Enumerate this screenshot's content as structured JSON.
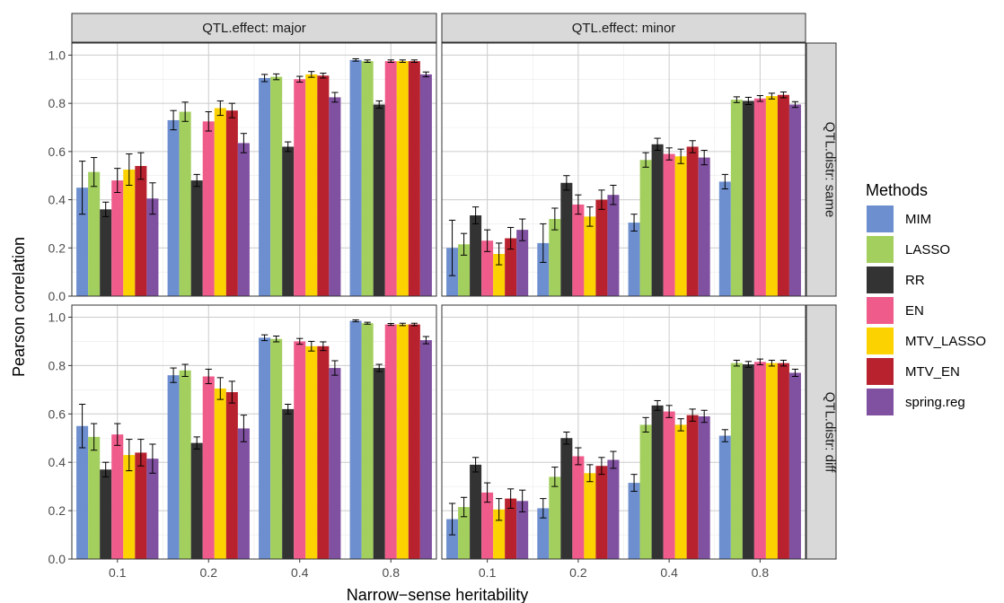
{
  "chart_data": {
    "type": "bar",
    "title": "",
    "xlabel": "Narrow−sense heritability",
    "ylabel": "Pearson correlation",
    "ylim": [
      0,
      1.05
    ],
    "yticks": [
      "0.0",
      "0.2",
      "0.4",
      "0.6",
      "0.8",
      "1.0"
    ],
    "categories": [
      "0.1",
      "0.2",
      "0.4",
      "0.8"
    ],
    "col_facet_prefix": "QTL.effect: ",
    "row_facet_prefix": "QTL.distr: ",
    "col_facets": [
      "major",
      "minor"
    ],
    "row_facets": [
      "same",
      "diff"
    ],
    "legend": {
      "title": "Methods",
      "position": "right",
      "items": [
        {
          "name": "MIM",
          "color": "#6d8fcf"
        },
        {
          "name": "LASSO",
          "color": "#a3cf5e"
        },
        {
          "name": "RR",
          "color": "#333333"
        },
        {
          "name": "EN",
          "color": "#ef5b8a"
        },
        {
          "name": "MTV_LASSO",
          "color": "#fcd200"
        },
        {
          "name": "MTV_EN",
          "color": "#b8222e"
        },
        {
          "name": "spring.reg",
          "color": "#8051a1"
        }
      ]
    },
    "panels": [
      {
        "col": "major",
        "row": "same",
        "series": [
          {
            "name": "MIM",
            "values": [
              0.45,
              0.73,
              0.905,
              0.98
            ],
            "errors": [
              0.11,
              0.04,
              0.015,
              0.005
            ]
          },
          {
            "name": "LASSO",
            "values": [
              0.515,
              0.765,
              0.91,
              0.975
            ],
            "errors": [
              0.06,
              0.04,
              0.012,
              0.005
            ]
          },
          {
            "name": "RR",
            "values": [
              0.36,
              0.48,
              0.62,
              0.795
            ],
            "errors": [
              0.03,
              0.025,
              0.02,
              0.015
            ]
          },
          {
            "name": "EN",
            "values": [
              0.48,
              0.725,
              0.9,
              0.975
            ],
            "errors": [
              0.05,
              0.04,
              0.012,
              0.005
            ]
          },
          {
            "name": "MTV_LASSO",
            "values": [
              0.525,
              0.78,
              0.92,
              0.975
            ],
            "errors": [
              0.065,
              0.03,
              0.012,
              0.005
            ]
          },
          {
            "name": "MTV_EN",
            "values": [
              0.54,
              0.77,
              0.915,
              0.975
            ],
            "errors": [
              0.055,
              0.03,
              0.01,
              0.005
            ]
          },
          {
            "name": "spring.reg",
            "values": [
              0.405,
              0.635,
              0.825,
              0.92
            ],
            "errors": [
              0.065,
              0.04,
              0.02,
              0.01
            ]
          }
        ]
      },
      {
        "col": "minor",
        "row": "same",
        "series": [
          {
            "name": "MIM",
            "values": [
              0.2,
              0.22,
              0.305,
              0.475
            ],
            "errors": [
              0.115,
              0.08,
              0.035,
              0.03
            ]
          },
          {
            "name": "LASSO",
            "values": [
              0.215,
              0.32,
              0.565,
              0.815
            ],
            "errors": [
              0.045,
              0.045,
              0.03,
              0.012
            ]
          },
          {
            "name": "RR",
            "values": [
              0.335,
              0.47,
              0.63,
              0.81
            ],
            "errors": [
              0.035,
              0.03,
              0.025,
              0.015
            ]
          },
          {
            "name": "EN",
            "values": [
              0.23,
              0.38,
              0.59,
              0.82
            ],
            "errors": [
              0.045,
              0.04,
              0.025,
              0.012
            ]
          },
          {
            "name": "MTV_LASSO",
            "values": [
              0.175,
              0.33,
              0.58,
              0.83
            ],
            "errors": [
              0.045,
              0.04,
              0.03,
              0.012
            ]
          },
          {
            "name": "MTV_EN",
            "values": [
              0.24,
              0.4,
              0.62,
              0.835
            ],
            "errors": [
              0.045,
              0.04,
              0.025,
              0.012
            ]
          },
          {
            "name": "spring.reg",
            "values": [
              0.275,
              0.42,
              0.575,
              0.795
            ],
            "errors": [
              0.045,
              0.04,
              0.03,
              0.012
            ]
          }
        ]
      },
      {
        "col": "major",
        "row": "diff",
        "series": [
          {
            "name": "MIM",
            "values": [
              0.55,
              0.76,
              0.915,
              0.985
            ],
            "errors": [
              0.09,
              0.03,
              0.012,
              0.004
            ]
          },
          {
            "name": "LASSO",
            "values": [
              0.505,
              0.78,
              0.91,
              0.975
            ],
            "errors": [
              0.055,
              0.025,
              0.012,
              0.004
            ]
          },
          {
            "name": "RR",
            "values": [
              0.37,
              0.48,
              0.62,
              0.79
            ],
            "errors": [
              0.03,
              0.025,
              0.02,
              0.015
            ]
          },
          {
            "name": "EN",
            "values": [
              0.515,
              0.755,
              0.9,
              0.97
            ],
            "errors": [
              0.045,
              0.03,
              0.012,
              0.004
            ]
          },
          {
            "name": "MTV_LASSO",
            "values": [
              0.43,
              0.705,
              0.88,
              0.97
            ],
            "errors": [
              0.065,
              0.045,
              0.02,
              0.005
            ]
          },
          {
            "name": "MTV_EN",
            "values": [
              0.44,
              0.69,
              0.88,
              0.97
            ],
            "errors": [
              0.055,
              0.045,
              0.018,
              0.005
            ]
          },
          {
            "name": "spring.reg",
            "values": [
              0.415,
              0.54,
              0.79,
              0.905
            ],
            "errors": [
              0.06,
              0.055,
              0.03,
              0.015
            ]
          }
        ]
      },
      {
        "col": "minor",
        "row": "diff",
        "series": [
          {
            "name": "MIM",
            "values": [
              0.165,
              0.21,
              0.315,
              0.51
            ],
            "errors": [
              0.065,
              0.04,
              0.035,
              0.025
            ]
          },
          {
            "name": "LASSO",
            "values": [
              0.215,
              0.34,
              0.555,
              0.81
            ],
            "errors": [
              0.04,
              0.04,
              0.03,
              0.012
            ]
          },
          {
            "name": "RR",
            "values": [
              0.39,
              0.5,
              0.635,
              0.805
            ],
            "errors": [
              0.03,
              0.025,
              0.02,
              0.012
            ]
          },
          {
            "name": "EN",
            "values": [
              0.275,
              0.425,
              0.61,
              0.815
            ],
            "errors": [
              0.04,
              0.035,
              0.025,
              0.012
            ]
          },
          {
            "name": "MTV_LASSO",
            "values": [
              0.205,
              0.355,
              0.555,
              0.81
            ],
            "errors": [
              0.045,
              0.035,
              0.025,
              0.012
            ]
          },
          {
            "name": "MTV_EN",
            "values": [
              0.25,
              0.385,
              0.595,
              0.81
            ],
            "errors": [
              0.04,
              0.035,
              0.025,
              0.012
            ]
          },
          {
            "name": "spring.reg",
            "values": [
              0.24,
              0.41,
              0.59,
              0.77
            ],
            "errors": [
              0.045,
              0.035,
              0.025,
              0.015
            ]
          }
        ]
      }
    ]
  }
}
